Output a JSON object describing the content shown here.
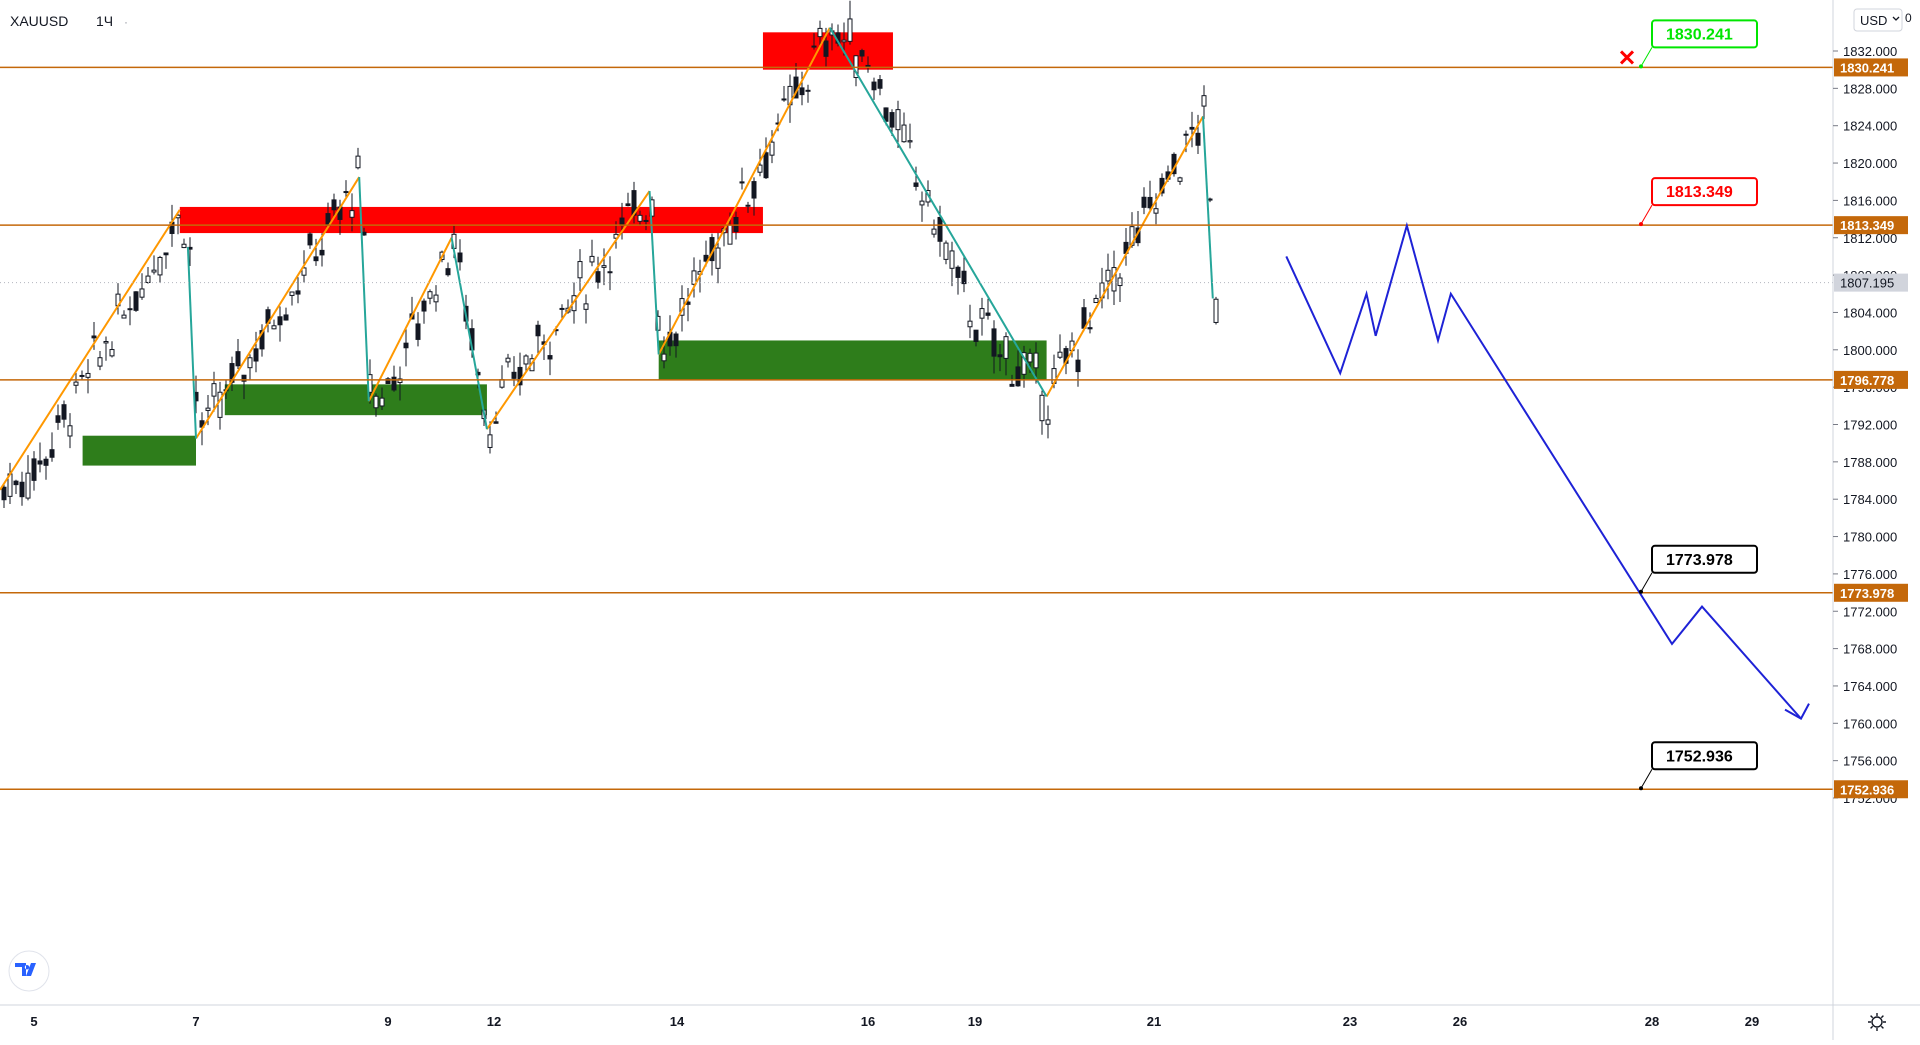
{
  "symbol": "XAUUSD",
  "interval": "1Ч",
  "currency_button": "USD",
  "top_right_glyph": "0",
  "colors": {
    "level_line": "#c4680a",
    "tag_bg": "#c4680a",
    "last_price_bg": "#d1d4dc",
    "supply_zone": "#ff0000",
    "demand_zone": "#2e7d1b",
    "impulse_up": "#ff9800",
    "impulse_down": "#26a69a",
    "forecast": "#1e22d6",
    "candle": "#131722",
    "callout_green": "#00e600",
    "callout_red": "#ff0000",
    "callout_black": "#000000"
  },
  "chart_data": {
    "type": "candlestick",
    "title": "",
    "y_axis_ticks": [
      "1832.000",
      "1828.000",
      "1824.000",
      "1820.000",
      "1816.000",
      "1812.000",
      "1808.000",
      "1804.000",
      "1800.000",
      "1796.000",
      "1792.000",
      "1788.000",
      "1784.000",
      "1780.000",
      "1776.000",
      "1772.000",
      "1768.000",
      "1764.000",
      "1760.000",
      "1756.000",
      "1752.000"
    ],
    "x_axis_ticks": [
      "5",
      "7",
      "9",
      "12",
      "14",
      "16",
      "19",
      "21",
      "23",
      "26",
      "28",
      "29"
    ],
    "ylim": [
      1746.5,
      1836.2
    ],
    "last_price": "1807.195",
    "horizontal_levels": [
      {
        "price": 1830.241,
        "label": "1830.241",
        "callout": "1830.241",
        "callout_color": "green"
      },
      {
        "price": 1813.349,
        "label": "1813.349",
        "callout": "1813.349",
        "callout_color": "red"
      },
      {
        "price": 1796.778,
        "label": "1796.778"
      },
      {
        "price": 1773.978,
        "label": "1773.978",
        "callout": "1773.978",
        "callout_color": "black"
      },
      {
        "price": 1752.936,
        "label": "1752.936",
        "callout": "1752.936",
        "callout_color": "black"
      }
    ],
    "supply_zones": [
      {
        "x_from": 6.8,
        "x_to": 14.9,
        "y_from": 1812.5,
        "y_to": 1815.3
      },
      {
        "x_from": 14.9,
        "x_to": 16.7,
        "y_from": 1830.0,
        "y_to": 1834.0
      }
    ],
    "demand_zones": [
      {
        "x_from": 5.6,
        "x_to": 7.0,
        "y_from": 1787.6,
        "y_to": 1790.8
      },
      {
        "x_from": 7.3,
        "x_to": 11.8,
        "y_from": 1793.0,
        "y_to": 1796.3
      },
      {
        "x_from": 13.8,
        "x_to": 19.8,
        "y_from": 1796.8,
        "y_to": 1801.0
      }
    ],
    "impulse_up_legs": [
      [
        [
          4.85,
          1785.0
        ],
        [
          6.8,
          1815.0
        ]
      ],
      [
        [
          7.0,
          1790.5
        ],
        [
          8.7,
          1818.5
        ]
      ],
      [
        [
          8.8,
          1794.5
        ],
        [
          10.8,
          1812.0
        ]
      ],
      [
        [
          11.8,
          1791.5
        ],
        [
          13.7,
          1817.0
        ]
      ],
      [
        [
          13.8,
          1799.5
        ],
        [
          15.6,
          1834.5
        ]
      ],
      [
        [
          19.8,
          1795.0
        ],
        [
          21.5,
          1825.0
        ]
      ]
    ],
    "impulse_down_legs": [
      [
        [
          6.9,
          1811.0
        ],
        [
          7.0,
          1790.5
        ]
      ],
      [
        [
          8.7,
          1818.5
        ],
        [
          8.8,
          1794.5
        ]
      ],
      [
        [
          10.8,
          1812.0
        ],
        [
          11.8,
          1791.5
        ]
      ],
      [
        [
          13.7,
          1817.0
        ],
        [
          13.8,
          1799.5
        ]
      ],
      [
        [
          15.6,
          1834.5
        ],
        [
          19.8,
          1795.0
        ]
      ],
      [
        [
          21.5,
          1825.0
        ],
        [
          21.6,
          1805.5
        ]
      ]
    ],
    "forecast_path": [
      [
        22.35,
        1810.0
      ],
      [
        22.9,
        1797.5
      ],
      [
        23.45,
        1806.0
      ],
      [
        23.7,
        1801.5
      ],
      [
        24.55,
        1813.3
      ],
      [
        25.4,
        1801.0
      ],
      [
        25.75,
        1806.0
      ],
      [
        28.2,
        1768.5
      ],
      [
        28.5,
        1772.5
      ],
      [
        29.5,
        1760.5
      ]
    ],
    "x_note": "x values are day-of-month on the chart's time axis (approximate)"
  }
}
